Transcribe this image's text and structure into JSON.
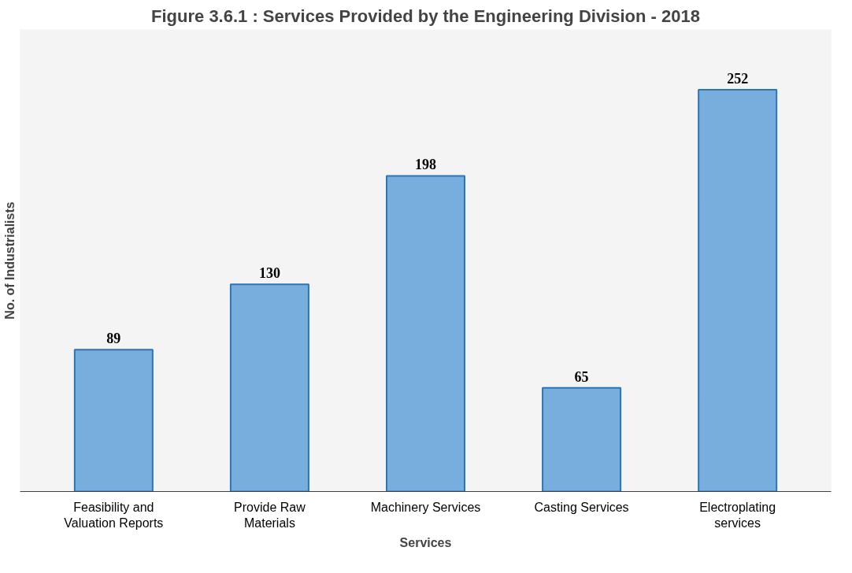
{
  "chart_data": {
    "type": "bar",
    "title": "Figure 3.6.1 : Services Provided by the Engineering Division - 2018",
    "xlabel": "Services",
    "ylabel": "No. of Industrialists",
    "categories": [
      "Feasibility and Valuation Reports",
      "Provide Raw Materials",
      "Machinery Services",
      "Casting Services",
      "Electroplating services"
    ],
    "values": [
      89,
      130,
      198,
      65,
      252
    ],
    "color": "#6aa6dc",
    "data_labels": true,
    "tick_labels": "x"
  }
}
